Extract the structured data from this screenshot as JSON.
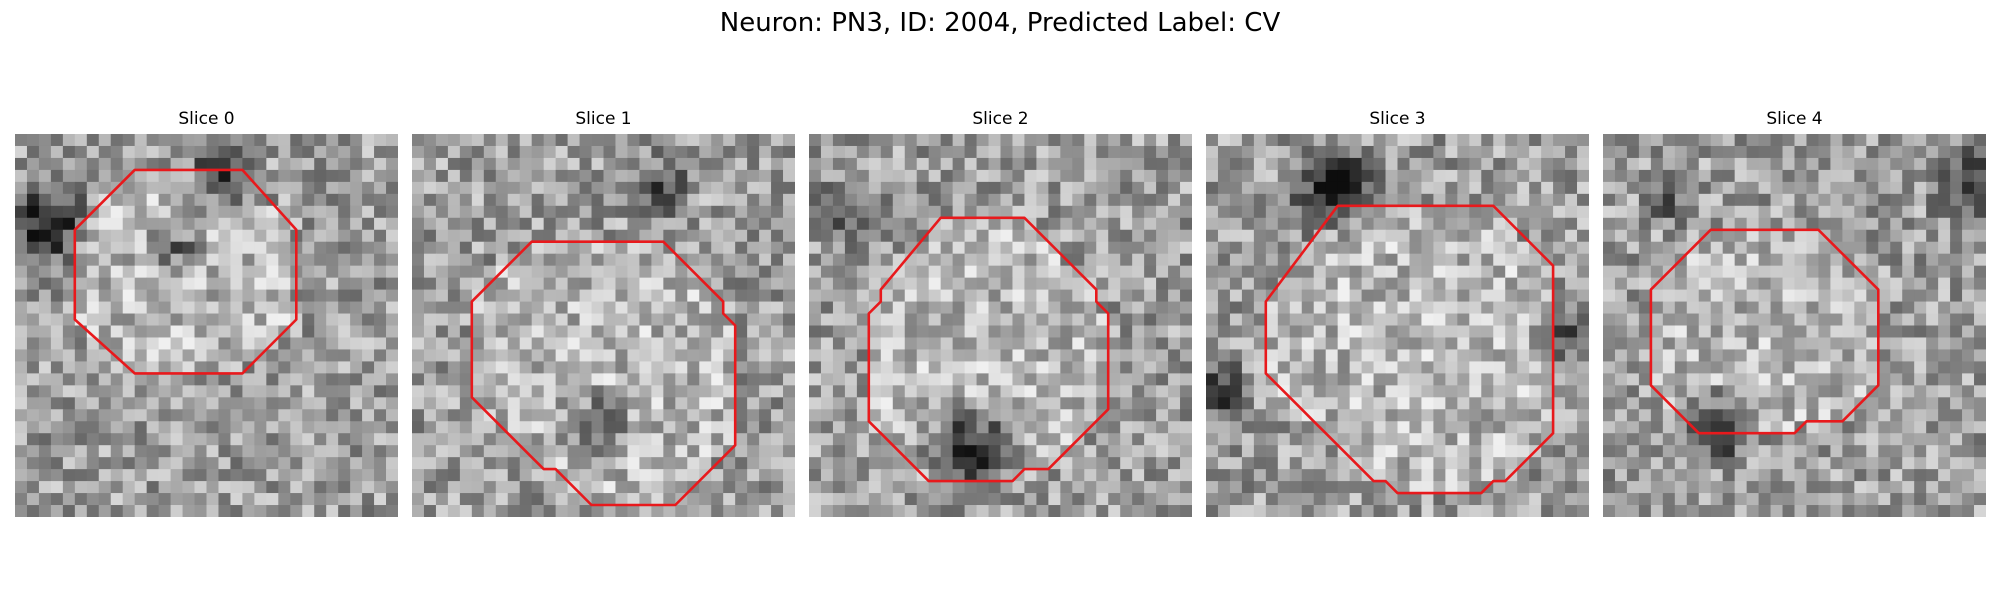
{
  "title": "Neuron: PN3, ID: 2004, Predicted Label: CV",
  "panels": [
    {
      "label": "Slice 0",
      "seed": 11,
      "contour_color": "#e8191c",
      "dark_spots": [
        [
          2,
          7,
          0.55,
          5
        ],
        [
          17,
          3,
          0.45,
          4
        ],
        [
          13,
          9,
          0.35,
          3
        ]
      ],
      "contour": [
        [
          10,
          3
        ],
        [
          19,
          3
        ],
        [
          23.5,
          8
        ],
        [
          23.5,
          15.5
        ],
        [
          19,
          20
        ],
        [
          10,
          20
        ],
        [
          5,
          15.5
        ],
        [
          5,
          8
        ]
      ]
    },
    {
      "label": "Slice 1",
      "seed": 23,
      "contour_color": "#e8191c",
      "dark_spots": [
        [
          15,
          24,
          0.35,
          4
        ],
        [
          20,
          4,
          0.3,
          4
        ]
      ],
      "contour": [
        [
          10,
          9
        ],
        [
          21,
          9
        ],
        [
          26,
          14
        ],
        [
          26,
          15
        ],
        [
          27,
          16
        ],
        [
          27,
          26
        ],
        [
          22,
          31
        ],
        [
          15,
          31
        ],
        [
          12,
          28
        ],
        [
          11,
          28
        ],
        [
          10,
          27
        ],
        [
          5,
          22
        ],
        [
          5,
          14
        ]
      ]
    },
    {
      "label": "Slice 2",
      "seed": 37,
      "contour_color": "#e8191c",
      "dark_spots": [
        [
          13,
          26,
          0.6,
          5
        ],
        [
          3,
          6,
          0.3,
          4
        ]
      ],
      "contour": [
        [
          11,
          7
        ],
        [
          18,
          7
        ],
        [
          24,
          13
        ],
        [
          24,
          14
        ],
        [
          25,
          15
        ],
        [
          25,
          23
        ],
        [
          20,
          28
        ],
        [
          18,
          28
        ],
        [
          17,
          29
        ],
        [
          10,
          29
        ],
        [
          6,
          25
        ],
        [
          5,
          24
        ],
        [
          5,
          15
        ],
        [
          6,
          14
        ],
        [
          6,
          13
        ]
      ]
    },
    {
      "label": "Slice 3",
      "seed": 41,
      "contour_color": "#e8191c",
      "dark_spots": [
        [
          10,
          4,
          0.55,
          5
        ],
        [
          1,
          21,
          0.55,
          3
        ],
        [
          30,
          16,
          0.3,
          4
        ]
      ],
      "contour": [
        [
          11,
          6
        ],
        [
          24,
          6
        ],
        [
          29,
          11
        ],
        [
          29,
          25
        ],
        [
          25,
          29
        ],
        [
          24,
          29
        ],
        [
          23,
          30
        ],
        [
          16,
          30
        ],
        [
          15,
          29
        ],
        [
          14,
          29
        ],
        [
          10,
          25
        ],
        [
          9,
          24
        ],
        [
          8,
          23
        ],
        [
          5,
          20
        ],
        [
          5,
          14
        ]
      ]
    },
    {
      "label": "Slice 4",
      "seed": 53,
      "contour_color": "#e8191c",
      "dark_spots": [
        [
          9,
          24,
          0.5,
          4
        ],
        [
          31,
          4,
          0.5,
          5
        ],
        [
          5,
          5,
          0.3,
          3
        ]
      ],
      "contour": [
        [
          9,
          8
        ],
        [
          18,
          8
        ],
        [
          23,
          13
        ],
        [
          23,
          21
        ],
        [
          20,
          24
        ],
        [
          17,
          24
        ],
        [
          16,
          25
        ],
        [
          8,
          25
        ],
        [
          4,
          21
        ],
        [
          4,
          13
        ]
      ]
    }
  ]
}
